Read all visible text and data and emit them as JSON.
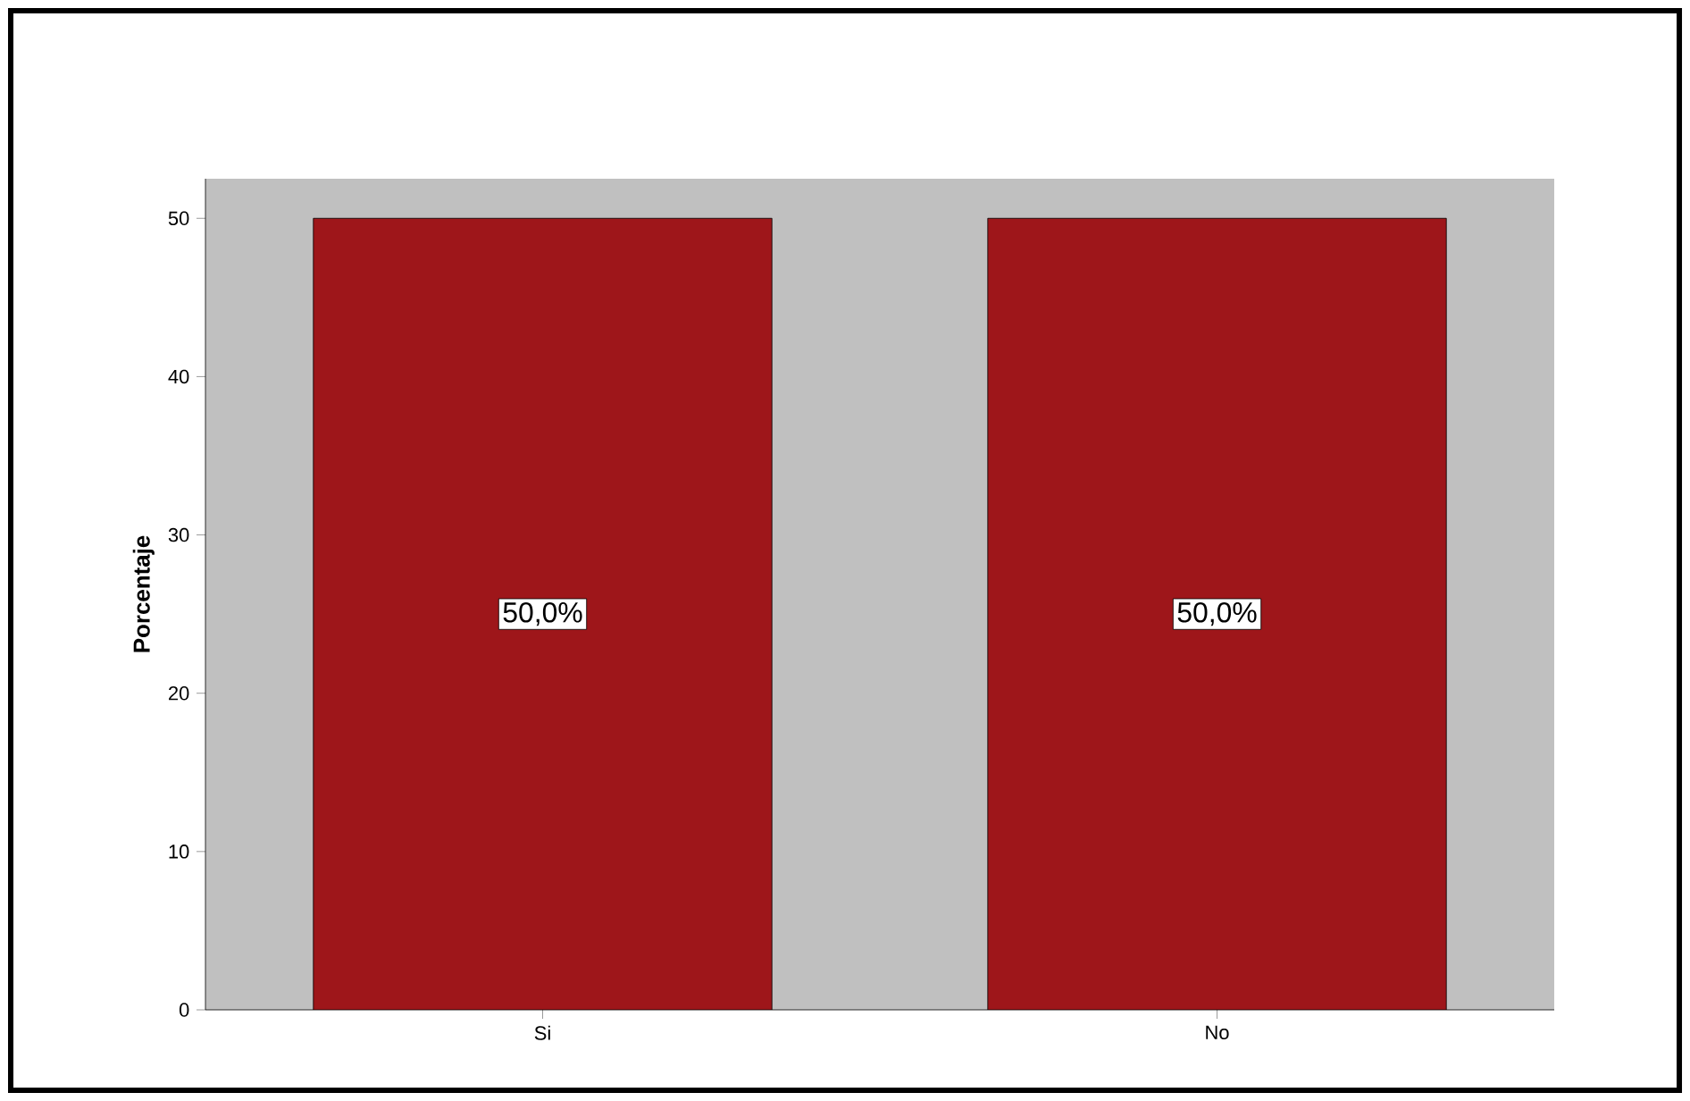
{
  "chart_data": {
    "type": "bar",
    "ylabel": "Porcentaje",
    "categories": [
      "Si",
      "No"
    ],
    "values": [
      50,
      50
    ],
    "value_labels": [
      "50,0%",
      "50,0%"
    ],
    "color": "#9e161a",
    "ylim": [
      0,
      52.5
    ],
    "yticks": [
      0,
      10,
      20,
      30,
      40,
      50
    ]
  }
}
